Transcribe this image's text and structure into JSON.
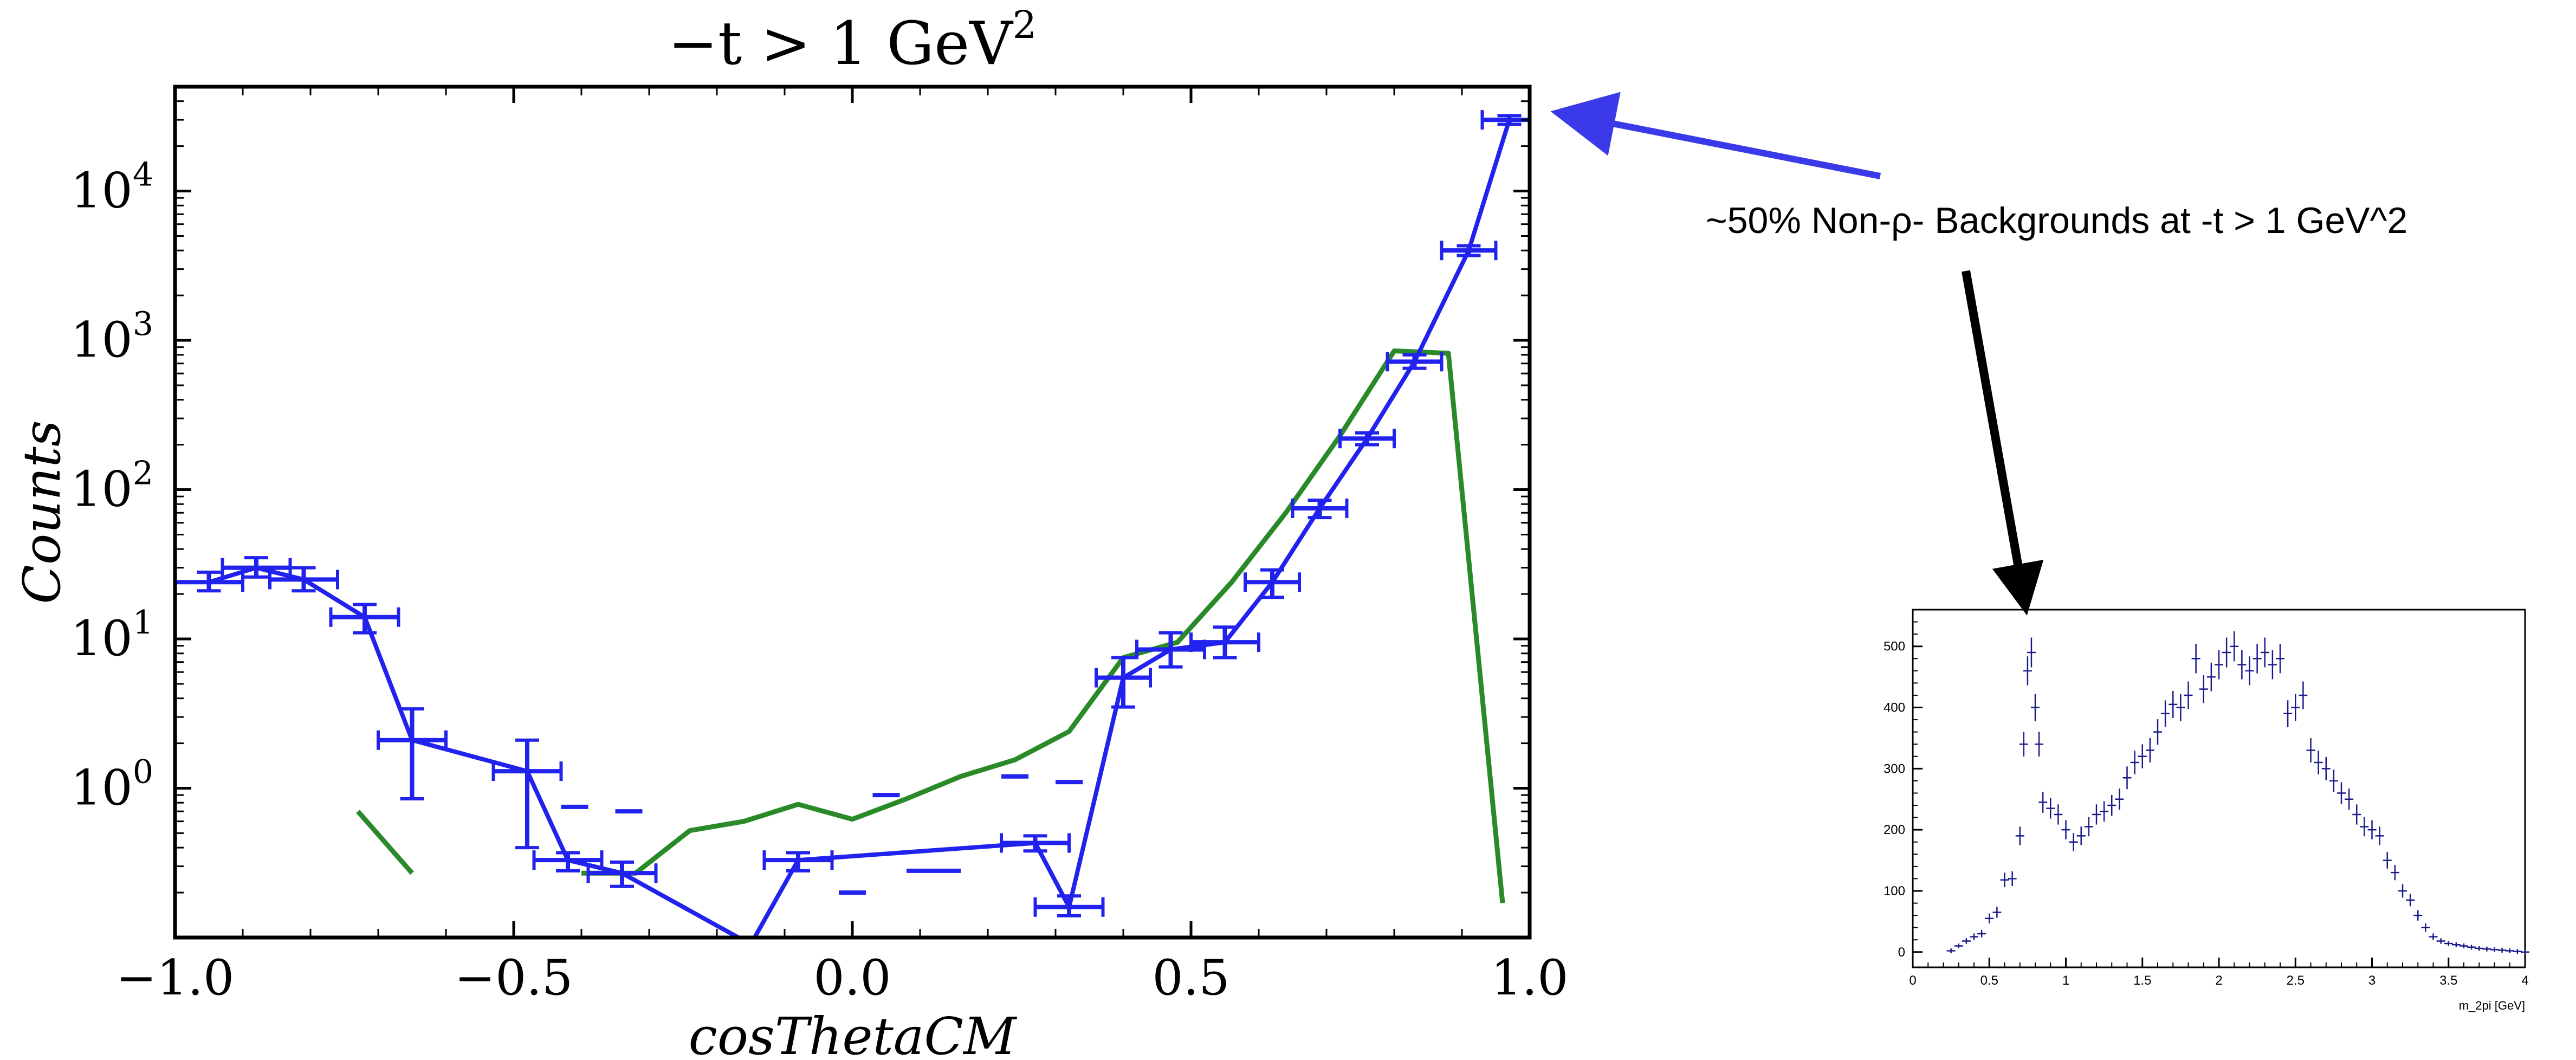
{
  "annotation": {
    "text": "~50% Non-ρ- Backgrounds at -t > 1 GeV^2",
    "arrow_blue_color": "#3a3ae8",
    "arrow_black_color": "#000000"
  },
  "chart_data": [
    {
      "type": "line",
      "title": "−t > 1 GeV",
      "title_sup": "2",
      "xlabel": "cosThetaCM",
      "ylabel": "Counts",
      "xlim": [
        -1.0,
        1.0
      ],
      "ylim": [
        0.1,
        50000
      ],
      "yscale": "log",
      "x_ticks": [
        "−1.0",
        "−0.5",
        "0.0",
        "0.5",
        "1.0"
      ],
      "y_ticks": [
        {
          "base": "10",
          "exp": "4",
          "value": 10000
        },
        {
          "base": "10",
          "exp": "3",
          "value": 1000
        },
        {
          "base": "10",
          "exp": "2",
          "value": 100
        },
        {
          "base": "10",
          "exp": "1",
          "value": 10
        },
        {
          "base": "10",
          "exp": "0",
          "value": 1
        }
      ],
      "grid": false,
      "series": [
        {
          "color": "#2222ee",
          "style": "errorbar-line",
          "points": [
            {
              "x": -0.95,
              "y": 24,
              "xerr": 0.05,
              "ylo": 21,
              "yhi": 28
            },
            {
              "x": -0.88,
              "y": 30,
              "xerr": 0.05,
              "ylo": 26,
              "yhi": 35
            },
            {
              "x": -0.81,
              "y": 25,
              "xerr": 0.05,
              "ylo": 21,
              "yhi": 30
            },
            {
              "x": -0.72,
              "y": 14,
              "xerr": 0.05,
              "ylo": 11,
              "yhi": 17
            },
            {
              "x": -0.65,
              "y": 2.1,
              "xerr": 0.05,
              "ylo": 0.85,
              "yhi": 3.4
            },
            {
              "x": -0.48,
              "y": 1.3,
              "xerr": 0.05,
              "ylo": 0.4,
              "yhi": 2.1
            },
            {
              "x": -0.42,
              "y": 0.33,
              "xerr": 0.05,
              "ylo": 0.28,
              "yhi": 0.37
            },
            {
              "x": -0.34,
              "y": 0.27,
              "xerr": 0.05,
              "ylo": 0.22,
              "yhi": 0.32
            },
            {
              "x": -0.15,
              "y": 0.09,
              "break": true
            },
            {
              "x": -0.08,
              "y": 0.33,
              "xerr": 0.05,
              "ylo": 0.28,
              "yhi": 0.37
            },
            {
              "x": 0.27,
              "y": 0.43,
              "xerr": 0.05,
              "ylo": 0.38,
              "yhi": 0.48
            },
            {
              "x": 0.32,
              "y": 0.16,
              "xerr": 0.05,
              "ylo": 0.14,
              "yhi": 0.19
            },
            {
              "x": 0.4,
              "y": 5.5,
              "xerr": 0.04,
              "ylo": 3.5,
              "yhi": 7.5
            },
            {
              "x": 0.47,
              "y": 8.5,
              "xerr": 0.05,
              "ylo": 6.5,
              "yhi": 11
            },
            {
              "x": 0.55,
              "y": 9.5,
              "xerr": 0.05,
              "ylo": 7.5,
              "yhi": 12
            },
            {
              "x": 0.62,
              "y": 24,
              "xerr": 0.04,
              "ylo": 19,
              "yhi": 29
            },
            {
              "x": 0.69,
              "y": 75,
              "xerr": 0.04,
              "ylo": 65,
              "yhi": 85
            },
            {
              "x": 0.76,
              "y": 220,
              "xerr": 0.04,
              "ylo": 200,
              "yhi": 240
            },
            {
              "x": 0.83,
              "y": 720,
              "xerr": 0.04,
              "ylo": 650,
              "yhi": 800
            },
            {
              "x": 0.91,
              "y": 4000,
              "xerr": 0.04,
              "ylo": 3700,
              "yhi": 4300
            },
            {
              "x": 0.97,
              "y": 30000,
              "xerr": 0.04,
              "ylo": 28000,
              "yhi": 32000
            }
          ],
          "isolated_dashes": [
            {
              "x": -0.41,
              "y": 0.75,
              "xerr": 0.02
            },
            {
              "x": -0.33,
              "y": 0.7,
              "xerr": 0.02
            },
            {
              "x": 0.0,
              "y": 0.2,
              "xerr": 0.02
            },
            {
              "x": 0.05,
              "y": 0.9,
              "xerr": 0.02
            },
            {
              "x": 0.12,
              "y": 0.28,
              "xerr": 0.04
            },
            {
              "x": 0.24,
              "y": 1.2,
              "xerr": 0.02
            },
            {
              "x": 0.32,
              "y": 1.1,
              "xerr": 0.02
            }
          ]
        },
        {
          "color": "#2a8a2a",
          "style": "line",
          "segments": [
            [
              [
                -0.73,
                0.7
              ],
              [
                -0.65,
                0.27
              ]
            ],
            [
              [
                -0.4,
                0.27
              ],
              [
                -0.32,
                0.27
              ],
              [
                -0.24,
                0.52
              ],
              [
                -0.16,
                0.6
              ],
              [
                -0.08,
                0.78
              ],
              [
                0.0,
                0.62
              ],
              [
                0.08,
                0.85
              ],
              [
                0.16,
                1.2
              ],
              [
                0.24,
                1.55
              ],
              [
                0.32,
                2.4
              ],
              [
                0.4,
                7.5
              ],
              [
                0.48,
                9.5
              ],
              [
                0.56,
                24
              ],
              [
                0.64,
                70
              ],
              [
                0.72,
                230
              ],
              [
                0.8,
                850
              ],
              [
                0.88,
                820
              ],
              [
                0.96,
                0.17
              ]
            ]
          ]
        }
      ]
    },
    {
      "type": "scatter",
      "title": "",
      "xlabel": "m_2pi [GeV]",
      "ylabel": "",
      "xlim": [
        0,
        4
      ],
      "ylim": [
        -25,
        560
      ],
      "x_ticks": [
        0,
        0.5,
        1,
        1.5,
        2,
        2.5,
        3,
        3.5,
        4
      ],
      "x_tick_labels": [
        "0",
        "0.5",
        "1",
        "1.5",
        "2",
        "2.5",
        "3",
        "3.5",
        "4"
      ],
      "y_ticks": [
        0,
        100,
        200,
        300,
        400,
        500
      ],
      "color": "#1a1a8a",
      "x": [
        0.25,
        0.3,
        0.35,
        0.4,
        0.45,
        0.5,
        0.55,
        0.6,
        0.65,
        0.7,
        0.725,
        0.75,
        0.775,
        0.8,
        0.825,
        0.85,
        0.9,
        0.95,
        1.0,
        1.05,
        1.1,
        1.15,
        1.2,
        1.25,
        1.3,
        1.35,
        1.4,
        1.45,
        1.5,
        1.55,
        1.6,
        1.65,
        1.7,
        1.75,
        1.8,
        1.85,
        1.9,
        1.95,
        2.0,
        2.05,
        2.1,
        2.15,
        2.2,
        2.25,
        2.3,
        2.35,
        2.4,
        2.45,
        2.5,
        2.55,
        2.6,
        2.65,
        2.7,
        2.75,
        2.8,
        2.85,
        2.9,
        2.95,
        3.0,
        3.05,
        3.1,
        3.15,
        3.2,
        3.25,
        3.3,
        3.35,
        3.4,
        3.45,
        3.5,
        3.55,
        3.6,
        3.65,
        3.7,
        3.75,
        3.8,
        3.85,
        3.9,
        3.95,
        4.0
      ],
      "y": [
        2,
        10,
        18,
        25,
        30,
        55,
        65,
        118,
        120,
        190,
        340,
        460,
        490,
        400,
        340,
        245,
        235,
        225,
        200,
        180,
        190,
        205,
        225,
        230,
        240,
        250,
        285,
        310,
        320,
        330,
        360,
        390,
        405,
        400,
        420,
        480,
        430,
        450,
        470,
        490,
        500,
        470,
        460,
        480,
        490,
        470,
        480,
        390,
        400,
        420,
        330,
        310,
        300,
        280,
        260,
        250,
        225,
        205,
        200,
        190,
        150,
        130,
        100,
        85,
        60,
        40,
        25,
        18,
        14,
        12,
        10,
        8,
        6,
        5,
        4,
        3,
        2,
        1,
        0
      ],
      "yerr": 15
    }
  ]
}
